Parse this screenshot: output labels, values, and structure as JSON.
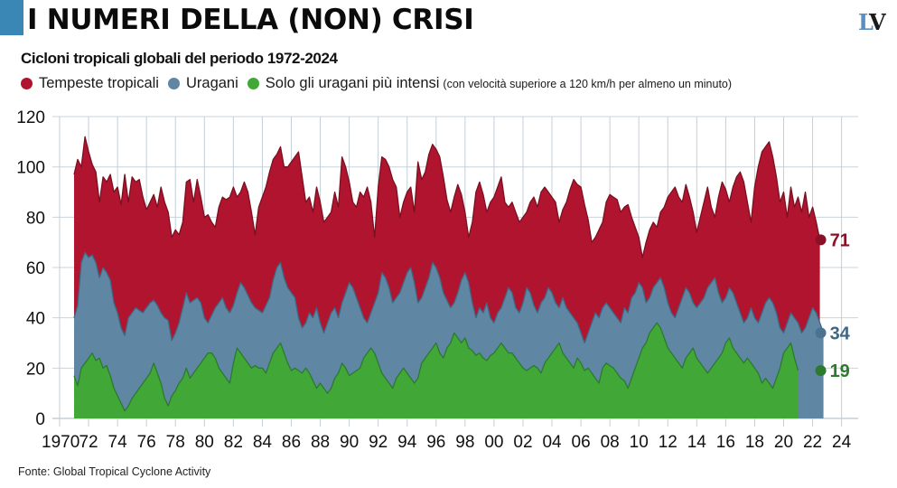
{
  "header": {
    "title": "I NUMERI DELLA (NON) CRISI",
    "logo_left": "L",
    "logo_right": "V",
    "accent_color": "#3a86b4"
  },
  "chart_data": {
    "type": "area",
    "title": "Cicloni tropicali globali del periodo 1972-2024",
    "xlabel": "",
    "ylabel": "",
    "xlim": [
      1970,
      2025
    ],
    "ylim": [
      0,
      120
    ],
    "grid": true,
    "legend_position": "top-left",
    "yticks": [
      "0",
      "20",
      "40",
      "60",
      "80",
      "100",
      "120"
    ],
    "ytick_values": [
      0,
      20,
      40,
      60,
      80,
      100,
      120
    ],
    "xticks": [
      "1970",
      "72",
      "74",
      "76",
      "78",
      "80",
      "82",
      "84",
      "86",
      "88",
      "90",
      "92",
      "94",
      "96",
      "98",
      "00",
      "02",
      "04",
      "06",
      "08",
      "10",
      "12",
      "14",
      "16",
      "18",
      "20",
      "22",
      "24"
    ],
    "xtick_values": [
      1970,
      1972,
      1974,
      1976,
      1978,
      1980,
      1982,
      1984,
      1986,
      1988,
      1990,
      1992,
      1994,
      1996,
      1998,
      2000,
      2002,
      2004,
      2006,
      2008,
      2010,
      2012,
      2014,
      2016,
      2018,
      2020,
      2022,
      2024
    ],
    "legend_note": "(con velocità superiore a 120 km/h per almeno un minuto)",
    "x_start": 1971.0,
    "x_step": 0.25,
    "series": [
      {
        "name": "Tempeste tropicali",
        "color": "#b0142f",
        "line_color": "#7a1020",
        "end_value": 71,
        "values": [
          97,
          103,
          100,
          112,
          106,
          101,
          98,
          86,
          96,
          94,
          97,
          90,
          92,
          85,
          97,
          86,
          96,
          94,
          95,
          88,
          83,
          86,
          89,
          84,
          92,
          86,
          82,
          72,
          75,
          73,
          78,
          94,
          95,
          86,
          95,
          88,
          80,
          81,
          78,
          76,
          84,
          88,
          87,
          88,
          92,
          88,
          90,
          94,
          90,
          82,
          73,
          84,
          88,
          92,
          98,
          103,
          105,
          108,
          100,
          100,
          102,
          104,
          106,
          96,
          86,
          88,
          82,
          92,
          86,
          78,
          80,
          82,
          90,
          84,
          104,
          100,
          94,
          86,
          84,
          90,
          88,
          92,
          86,
          72,
          92,
          104,
          103,
          100,
          95,
          92,
          80,
          86,
          90,
          92,
          82,
          102,
          95,
          98,
          105,
          109,
          107,
          104,
          96,
          87,
          82,
          88,
          93,
          89,
          82,
          72,
          78,
          90,
          94,
          89,
          82,
          86,
          88,
          92,
          96,
          86,
          84,
          86,
          82,
          78,
          80,
          82,
          86,
          88,
          84,
          90,
          92,
          90,
          88,
          86,
          78,
          83,
          86,
          91,
          95,
          93,
          92,
          85,
          79,
          70,
          72,
          75,
          78,
          86,
          89,
          88,
          87,
          82,
          84,
          85,
          80,
          76,
          72,
          64,
          70,
          75,
          78,
          76,
          82,
          84,
          88,
          90,
          92,
          88,
          86,
          93,
          88,
          82,
          74,
          80,
          86,
          92,
          84,
          80,
          88,
          94,
          91,
          86,
          92,
          96,
          98,
          94,
          86,
          78,
          92,
          100,
          106,
          108,
          110,
          104,
          96,
          86,
          90,
          80,
          92,
          84,
          88,
          82,
          90,
          80,
          84,
          78,
          71
        ]
      },
      {
        "name": "Uragani",
        "color": "#5f86a3",
        "line_color": "#3f6682",
        "end_value": 34,
        "values": [
          40,
          45,
          62,
          66,
          64,
          65,
          62,
          56,
          60,
          58,
          55,
          46,
          42,
          36,
          33,
          40,
          42,
          44,
          43,
          42,
          44,
          46,
          47,
          45,
          42,
          40,
          39,
          31,
          34,
          38,
          44,
          50,
          46,
          47,
          48,
          46,
          40,
          38,
          41,
          44,
          46,
          48,
          44,
          42,
          45,
          50,
          54,
          52,
          49,
          46,
          44,
          43,
          42,
          45,
          48,
          55,
          60,
          62,
          56,
          52,
          50,
          48,
          40,
          36,
          38,
          42,
          40,
          44,
          38,
          34,
          38,
          42,
          44,
          40,
          46,
          50,
          54,
          52,
          48,
          44,
          40,
          38,
          42,
          46,
          50,
          58,
          56,
          52,
          46,
          48,
          50,
          54,
          58,
          60,
          54,
          46,
          48,
          52,
          56,
          62,
          60,
          56,
          50,
          47,
          44,
          46,
          50,
          55,
          58,
          54,
          46,
          40,
          44,
          42,
          46,
          40,
          38,
          42,
          44,
          48,
          52,
          50,
          44,
          42,
          46,
          52,
          50,
          45,
          42,
          46,
          48,
          52,
          50,
          46,
          44,
          48,
          44,
          42,
          40,
          38,
          34,
          30,
          34,
          38,
          42,
          40,
          44,
          46,
          44,
          42,
          40,
          38,
          44,
          42,
          48,
          50,
          54,
          52,
          46,
          48,
          52,
          54,
          56,
          52,
          46,
          42,
          40,
          44,
          48,
          52,
          50,
          46,
          44,
          46,
          48,
          52,
          54,
          56,
          50,
          46,
          48,
          52,
          50,
          46,
          42,
          38,
          40,
          44,
          40,
          38,
          42,
          46,
          48,
          46,
          42,
          36,
          34,
          38,
          42,
          40,
          38,
          34,
          36,
          40,
          44,
          42,
          38,
          34
        ]
      },
      {
        "name": "Solo gli uragani più intensi",
        "color": "#41a838",
        "line_color": "#2b7a2e",
        "end_value": 19,
        "values": [
          17,
          13,
          20,
          22,
          24,
          26,
          23,
          24,
          20,
          21,
          17,
          12,
          9,
          6,
          3,
          5,
          8,
          10,
          12,
          14,
          16,
          18,
          22,
          18,
          14,
          8,
          5,
          9,
          11,
          14,
          16,
          20,
          16,
          18,
          20,
          22,
          24,
          26,
          26,
          24,
          20,
          18,
          16,
          14,
          22,
          28,
          26,
          24,
          22,
          20,
          21,
          20,
          20,
          18,
          22,
          26,
          28,
          30,
          26,
          22,
          19,
          20,
          19,
          18,
          20,
          18,
          15,
          12,
          14,
          12,
          10,
          12,
          16,
          18,
          22,
          20,
          17,
          18,
          19,
          20,
          24,
          26,
          28,
          26,
          22,
          18,
          16,
          14,
          12,
          16,
          18,
          20,
          18,
          16,
          14,
          16,
          22,
          24,
          26,
          28,
          30,
          26,
          24,
          28,
          30,
          34,
          32,
          30,
          32,
          28,
          27,
          25,
          26,
          24,
          23,
          25,
          26,
          28,
          30,
          28,
          26,
          26,
          24,
          22,
          20,
          19,
          20,
          21,
          20,
          18,
          22,
          24,
          26,
          28,
          30,
          26,
          24,
          22,
          20,
          24,
          22,
          19,
          20,
          18,
          16,
          14,
          20,
          22,
          21,
          20,
          18,
          16,
          15,
          12,
          16,
          20,
          24,
          28,
          30,
          34,
          36,
          38,
          36,
          32,
          28,
          26,
          24,
          22,
          20,
          24,
          26,
          28,
          24,
          22,
          20,
          18,
          20,
          22,
          24,
          26,
          30,
          32,
          28,
          26,
          24,
          22,
          24,
          22,
          20,
          18,
          14,
          16,
          14,
          12,
          16,
          20,
          26,
          28,
          30,
          24,
          19
        ]
      }
    ]
  },
  "footer": {
    "source": "Fonte: Global Tropical Cyclone Activity"
  }
}
